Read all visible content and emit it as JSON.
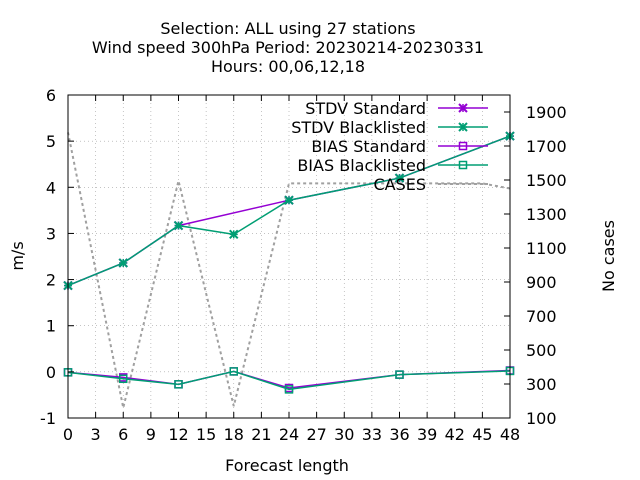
{
  "chart_data": {
    "type": "line",
    "title_lines": [
      "Selection: ALL using    27 stations",
      "Wind speed 300hPa   Period: 20230214-20230331",
      "Hours:  00,06,12,18"
    ],
    "xlabel": "Forecast length",
    "ylabel": "m/s",
    "y2label": "No cases",
    "xlim": [
      0,
      48
    ],
    "ylim": [
      -1,
      6
    ],
    "y2lim": [
      100,
      2000
    ],
    "x_ticks": [
      "0",
      "3",
      "6",
      "9",
      "12",
      "15",
      "18",
      "21",
      "24",
      "27",
      "30",
      "33",
      "36",
      "39",
      "42",
      "45",
      "48"
    ],
    "y_ticks": [
      "-1",
      "0",
      "1",
      "2",
      "3",
      "4",
      "5",
      "6"
    ],
    "y2_ticks": [
      "100",
      "300",
      "500",
      "700",
      "900",
      "1100",
      "1300",
      "1500",
      "1700",
      "1900"
    ],
    "grid": true,
    "legend_position": "top-right",
    "series": [
      {
        "name": "STDV Standard",
        "axis": "y",
        "color": "#9400d3",
        "marker": "x",
        "dash": "solid",
        "x": [
          0,
          6,
          12,
          24,
          36,
          48
        ],
        "values": [
          1.87,
          2.36,
          3.17,
          3.72,
          4.2,
          5.11
        ]
      },
      {
        "name": "STDV Blacklisted",
        "axis": "y",
        "color": "#009e73",
        "marker": "x",
        "dash": "solid",
        "x": [
          0,
          6,
          12,
          18,
          24,
          36,
          48
        ],
        "values": [
          1.87,
          2.36,
          3.17,
          2.98,
          3.72,
          4.2,
          5.11
        ]
      },
      {
        "name": "BIAS Standard",
        "axis": "y",
        "color": "#9400d3",
        "marker": "square",
        "dash": "solid",
        "x": [
          0,
          6,
          12,
          18,
          24,
          36,
          48
        ],
        "values": [
          -0.01,
          -0.12,
          -0.27,
          0.01,
          -0.35,
          -0.06,
          0.03
        ]
      },
      {
        "name": "BIAS Blacklisted",
        "axis": "y",
        "color": "#009e73",
        "marker": "square",
        "dash": "solid",
        "x": [
          0,
          6,
          12,
          18,
          24,
          36,
          48
        ],
        "values": [
          -0.01,
          -0.15,
          -0.27,
          0.01,
          -0.38,
          -0.06,
          0.02
        ]
      },
      {
        "name": "CASES",
        "axis": "y2",
        "color": "#a0a0a0",
        "marker": "none",
        "dash": "dotted",
        "x": [
          0,
          6,
          12,
          18,
          24,
          36,
          45,
          48
        ],
        "values": [
          1780,
          160,
          1495,
          170,
          1480,
          1480,
          1480,
          1450
        ]
      }
    ]
  }
}
